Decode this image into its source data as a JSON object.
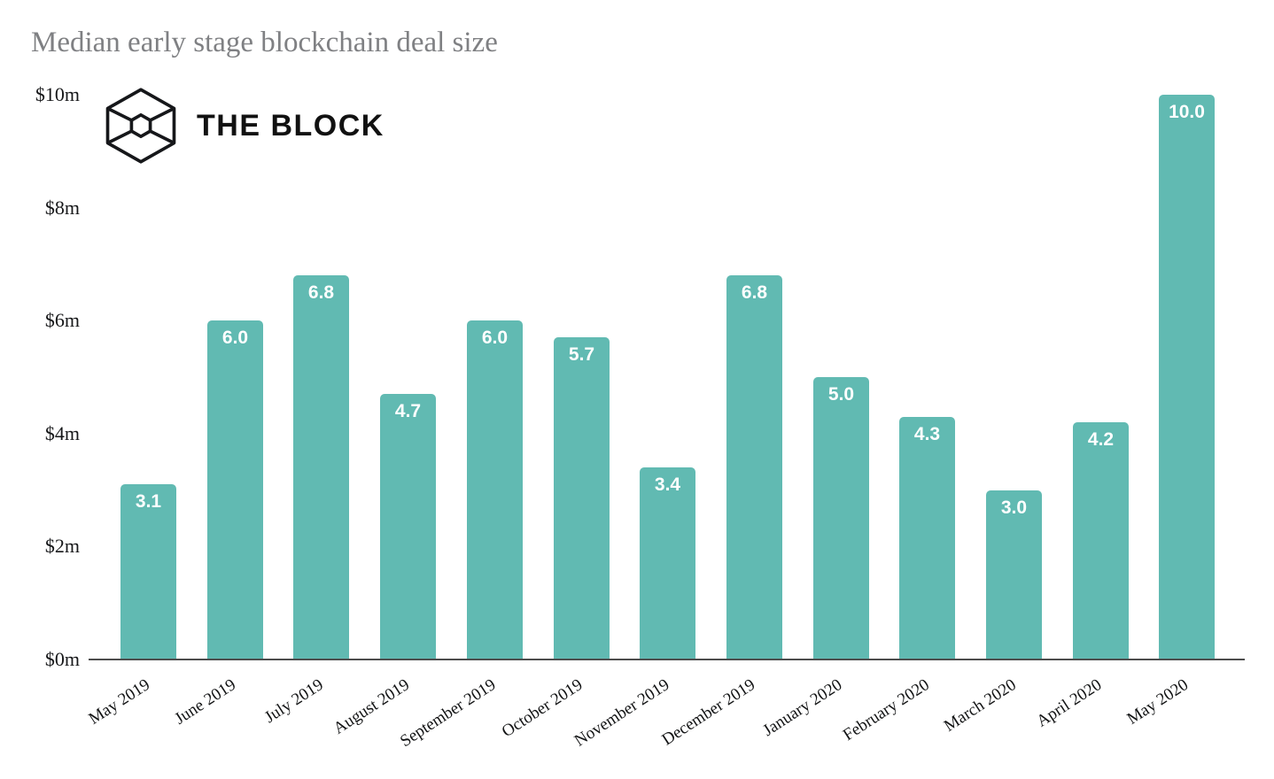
{
  "header": {
    "title": "Median early stage blockchain deal size",
    "title_color": "#7f8083"
  },
  "logo": {
    "text": "THE BLOCK",
    "color": "#111111"
  },
  "chart_data": {
    "type": "bar",
    "title": "Median early stage blockchain deal size",
    "categories": [
      "May 2019",
      "June 2019",
      "July 2019",
      "August 2019",
      "September 2019",
      "October 2019",
      "November 2019",
      "December 2019",
      "January 2020",
      "February 2020",
      "March 2020",
      "April 2020",
      "May 2020"
    ],
    "values": [
      3.1,
      6.0,
      6.8,
      4.7,
      6.0,
      5.7,
      3.4,
      6.8,
      5.0,
      4.3,
      3.0,
      4.2,
      10.0
    ],
    "value_labels": [
      "3.1",
      "6.0",
      "6.8",
      "4.7",
      "6.0",
      "5.7",
      "3.4",
      "6.8",
      "5.0",
      "4.3",
      "3.0",
      "4.2",
      "10.0"
    ],
    "xlabel": "",
    "ylabel": "",
    "ylim": [
      0,
      10
    ],
    "y_ticks": [
      {
        "value": 0,
        "label": "$0m"
      },
      {
        "value": 2,
        "label": "$2m"
      },
      {
        "value": 4,
        "label": "$4m"
      },
      {
        "value": 6,
        "label": "$6m"
      },
      {
        "value": 8,
        "label": "$8m"
      },
      {
        "value": 10,
        "label": "$10m"
      }
    ],
    "grid": false,
    "legend": false,
    "bar_color": "#61bab2",
    "value_label_color": "#ffffff",
    "axis_line_color": "#4d4d4d",
    "tick_label_color": "#17181a"
  }
}
